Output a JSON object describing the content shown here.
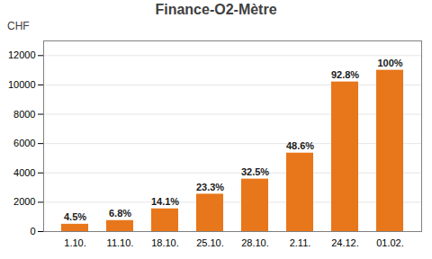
{
  "chart_data": {
    "type": "bar",
    "title": "Finance-O2-Mètre",
    "y_label": "CHF",
    "categories": [
      "1.10.",
      "11.10.",
      "18.10.",
      "25.10.",
      "28.10.",
      "2.11.",
      "24.12.",
      "01.02."
    ],
    "values": [
      500,
      750,
      1550,
      2550,
      3580,
      5350,
      10200,
      11000
    ],
    "annotations": [
      "4.5%",
      "6.8%",
      "14.1%",
      "23.3%",
      "32.5%",
      "48.6%",
      "92.8%",
      "100%"
    ],
    "color": "#E8761A",
    "ylim": [
      0,
      13000
    ],
    "yticks": [
      0,
      2000,
      4000,
      6000,
      8000,
      10000,
      12000
    ],
    "grid": true
  }
}
